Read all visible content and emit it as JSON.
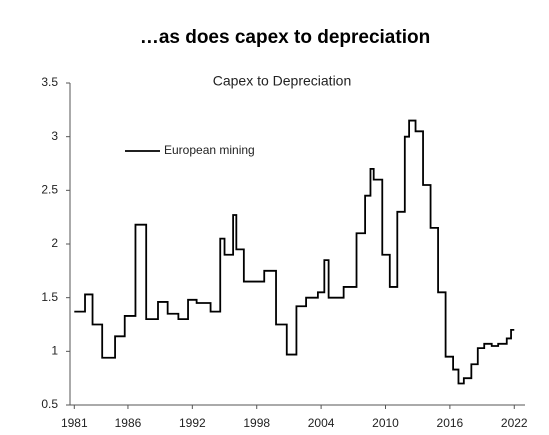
{
  "chart_data": {
    "type": "line",
    "title": "…as does capex to depreciation",
    "subtitle": "Capex to Depreciation",
    "step": true,
    "x": [
      1981.0,
      1982.0,
      1982.7,
      1983.6,
      1984.8,
      1985.7,
      1986.7,
      1987.7,
      1988.8,
      1989.7,
      1990.7,
      1991.6,
      1992.4,
      1993.7,
      1994.6,
      1995.0,
      1995.8,
      1996.1,
      1996.8,
      1998.7,
      1999.8,
      2000.8,
      2001.7,
      2002.6,
      2003.7,
      2004.3,
      2004.7,
      2006.1,
      2007.3,
      2008.1,
      2008.6,
      2008.9,
      2009.7,
      2010.4,
      2011.1,
      2011.8,
      2012.2,
      2012.8,
      2013.5,
      2014.2,
      2014.9,
      2015.6,
      2016.3,
      2016.8,
      2017.3,
      2018.0,
      2018.6,
      2019.2,
      2019.9,
      2020.5,
      2021.3,
      2021.7,
      2022.0
    ],
    "series": [
      {
        "name": "European mining",
        "color": "#000000",
        "values": [
          1.37,
          1.53,
          1.25,
          0.94,
          1.14,
          1.33,
          2.18,
          1.3,
          1.46,
          1.35,
          1.3,
          1.48,
          1.45,
          1.37,
          2.05,
          1.9,
          2.27,
          1.95,
          1.65,
          1.75,
          1.25,
          0.97,
          1.42,
          1.5,
          1.55,
          1.85,
          1.5,
          1.6,
          2.1,
          2.45,
          2.7,
          2.6,
          1.9,
          1.6,
          2.3,
          3.0,
          3.15,
          3.05,
          2.55,
          2.15,
          1.55,
          0.95,
          0.83,
          0.7,
          0.75,
          0.88,
          1.03,
          1.07,
          1.05,
          1.07,
          1.12,
          1.2,
          1.2
        ]
      }
    ],
    "xlim": [
      1980.6,
      2023.0
    ],
    "xticks": [
      1981,
      1986,
      1992,
      1998,
      2004,
      2010,
      2016,
      2022
    ],
    "ylim": [
      0.5,
      3.5
    ],
    "yticks": [
      0.5,
      1,
      1.5,
      2,
      2.5,
      3,
      3.5
    ]
  }
}
